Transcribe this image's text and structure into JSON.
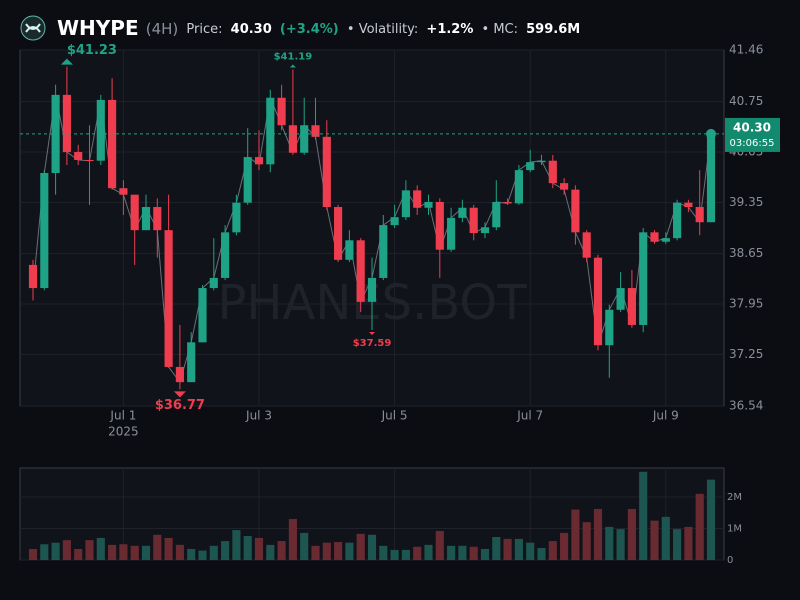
{
  "header": {
    "symbol": "WHYPE",
    "interval": "(4H)",
    "price_label": "Price:",
    "price": "40.30",
    "change": "(+3.4%)",
    "volatility_label": "• Volatility:",
    "volatility": "+1.2%",
    "mc_label": "• MC:",
    "mc": "599.6M"
  },
  "chart_data": {
    "type": "candlestick",
    "open": [
      38.49,
      38.17,
      39.76,
      40.84,
      40.05,
      39.94,
      39.93,
      40.77,
      39.55,
      39.46,
      38.97,
      39.29,
      38.97,
      37.08,
      36.87,
      37.42,
      38.17,
      38.31,
      38.94,
      39.35,
      39.98,
      39.88,
      40.8,
      40.42,
      40.04,
      40.42,
      40.26,
      39.29,
      38.56,
      38.83,
      37.98,
      38.31,
      39.04,
      39.15,
      39.52,
      39.28,
      39.36,
      38.7,
      39.14,
      39.28,
      38.93,
      39.01,
      39.36,
      39.34,
      39.8,
      39.91,
      39.93,
      39.62,
      39.53,
      38.94,
      38.59,
      37.38,
      37.87,
      38.17,
      37.66,
      38.94,
      38.81,
      38.86,
      39.35,
      39.29,
      39.08
    ],
    "high": [
      38.56,
      39.8,
      40.98,
      41.23,
      40.15,
      40.42,
      40.84,
      41.07,
      39.66,
      39.46,
      39.46,
      39.41,
      39.46,
      37.66,
      37.56,
      38.21,
      38.86,
      39.04,
      39.46,
      40.38,
      40.35,
      40.91,
      40.98,
      41.19,
      40.8,
      40.8,
      40.49,
      39.32,
      38.97,
      38.86,
      38.59,
      39.18,
      39.32,
      39.66,
      39.59,
      39.46,
      39.41,
      39.28,
      39.39,
      39.32,
      39.08,
      39.66,
      39.41,
      39.87,
      40.08,
      40.01,
      40.01,
      39.69,
      39.59,
      38.97,
      38.63,
      37.94,
      38.39,
      38.42,
      39.0,
      38.97,
      38.94,
      39.39,
      39.39,
      39.8,
      40.3
    ],
    "low": [
      38.0,
      38.14,
      39.46,
      39.87,
      39.87,
      39.32,
      39.87,
      39.53,
      39.18,
      38.49,
      38.97,
      38.59,
      37.07,
      36.77,
      36.87,
      37.42,
      38.14,
      38.28,
      38.9,
      39.32,
      39.8,
      39.77,
      40.35,
      40.01,
      40.01,
      40.22,
      39.25,
      38.53,
      38.53,
      37.84,
      37.59,
      38.28,
      39.0,
      39.11,
      39.18,
      39.18,
      38.31,
      38.67,
      39.08,
      38.83,
      38.86,
      38.97,
      39.32,
      39.32,
      39.77,
      39.87,
      39.55,
      39.46,
      38.77,
      38.53,
      37.31,
      36.93,
      37.84,
      37.62,
      37.56,
      38.78,
      38.78,
      38.83,
      39.22,
      38.9,
      39.08
    ],
    "close": [
      38.17,
      39.76,
      40.84,
      40.05,
      39.94,
      39.93,
      40.77,
      39.55,
      39.46,
      38.97,
      39.29,
      38.97,
      37.08,
      36.87,
      37.42,
      38.17,
      38.31,
      38.94,
      39.35,
      39.98,
      39.88,
      40.8,
      40.42,
      40.04,
      40.42,
      40.26,
      39.29,
      38.56,
      38.83,
      37.98,
      38.31,
      39.04,
      39.15,
      39.52,
      39.28,
      39.36,
      38.7,
      39.14,
      39.28,
      38.93,
      39.01,
      39.36,
      39.34,
      39.8,
      39.91,
      39.93,
      39.62,
      39.53,
      38.94,
      38.59,
      37.38,
      37.87,
      38.17,
      37.66,
      38.94,
      38.81,
      38.86,
      39.35,
      39.29,
      39.08,
      40.3
    ],
    "volume": [
      350000,
      500000,
      550000,
      630000,
      350000,
      630000,
      700000,
      480000,
      500000,
      450000,
      450000,
      800000,
      700000,
      480000,
      350000,
      300000,
      450000,
      600000,
      950000,
      760000,
      700000,
      480000,
      600000,
      1300000,
      860000,
      450000,
      550000,
      570000,
      550000,
      830000,
      800000,
      450000,
      320000,
      320000,
      420000,
      480000,
      920000,
      450000,
      450000,
      420000,
      350000,
      730000,
      670000,
      670000,
      550000,
      380000,
      600000,
      860000,
      1600000,
      1200000,
      1620000,
      1050000,
      980000,
      1620000,
      2800000,
      1250000,
      1370000,
      980000,
      1050000,
      2100000,
      2550000
    ],
    "up_color": "#1fa386",
    "down_color": "#ef3d4f",
    "up_volume_color": "#1d5550",
    "down_volume_color": "#6a2a32",
    "close_line_color": "#6b6f78",
    "ylim": [
      36.54,
      41.46
    ],
    "yticks": [
      36.54,
      37.25,
      37.95,
      38.65,
      39.35,
      40.05,
      40.75,
      41.46
    ],
    "volume_ylim": [
      0,
      2920000
    ],
    "volume_ticks": [
      0,
      {
        "value": 1000000,
        "label": "1M"
      },
      {
        "value": 2000000,
        "label": "2M"
      }
    ],
    "xticks": [
      {
        "value": 8,
        "label": "Jul 1"
      },
      {
        "value": 20,
        "label": "Jul 3"
      },
      {
        "value": 32,
        "label": "Jul 5"
      },
      {
        "value": 44,
        "label": "Jul 7"
      },
      {
        "value": 56,
        "label": "Jul 9"
      }
    ],
    "x_year_label": "2025",
    "high_markers": [
      {
        "value": 41.23,
        "label": "$41.23"
      },
      {
        "value": 41.19,
        "label": "$41.19"
      }
    ],
    "low_markers": [
      {
        "value": 36.77,
        "label": "$36.77"
      },
      {
        "value": 37.59,
        "label": "$37.59"
      }
    ],
    "last_price": {
      "value": 40.3,
      "label": "40.30"
    },
    "countdown": "03:06:55",
    "watermark": "PHANES.BOT",
    "grid": true
  }
}
